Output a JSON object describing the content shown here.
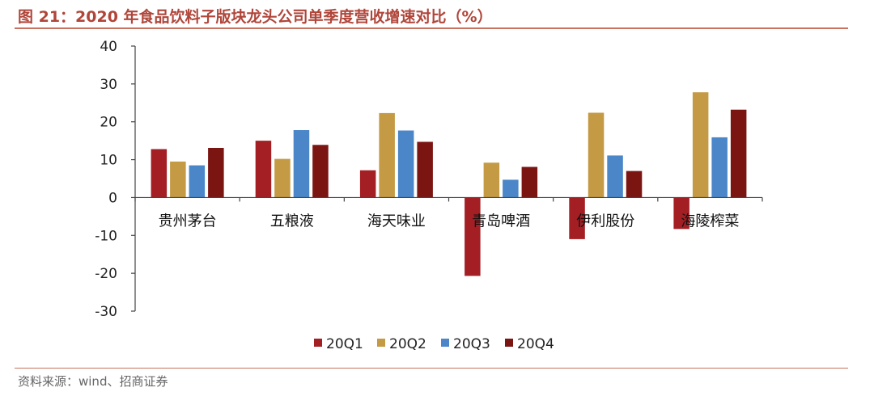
{
  "header": {
    "title": "图 21：2020 年食品饮料子版块龙头公司单季度营收增速对比（%）"
  },
  "footer": {
    "source": "资料来源：wind、招商证券"
  },
  "chart_data": {
    "type": "bar",
    "title": "",
    "xlabel": "",
    "ylabel": "",
    "ylim": [
      -30,
      40
    ],
    "yticks": [
      -30,
      -20,
      -10,
      0,
      10,
      20,
      30,
      40
    ],
    "grid": false,
    "legend": "bottom",
    "categories": [
      "贵州茅台",
      "五粮液",
      "海天味业",
      "青岛啤酒",
      "伊利股份",
      "海陵榨菜"
    ],
    "series": [
      {
        "name": "20Q1",
        "color": "#a31f24",
        "values": [
          12.8,
          15.0,
          7.2,
          -20.7,
          -11.0,
          -8.3
        ]
      },
      {
        "name": "20Q2",
        "color": "#c49a45",
        "values": [
          9.5,
          10.2,
          22.3,
          9.2,
          22.4,
          27.8
        ]
      },
      {
        "name": "20Q3",
        "color": "#4a86c8",
        "values": [
          8.5,
          17.8,
          17.7,
          4.7,
          11.1,
          15.9
        ]
      },
      {
        "name": "20Q4",
        "color": "#7b1512",
        "values": [
          13.1,
          13.9,
          14.7,
          8.1,
          7.0,
          23.2
        ]
      }
    ]
  }
}
